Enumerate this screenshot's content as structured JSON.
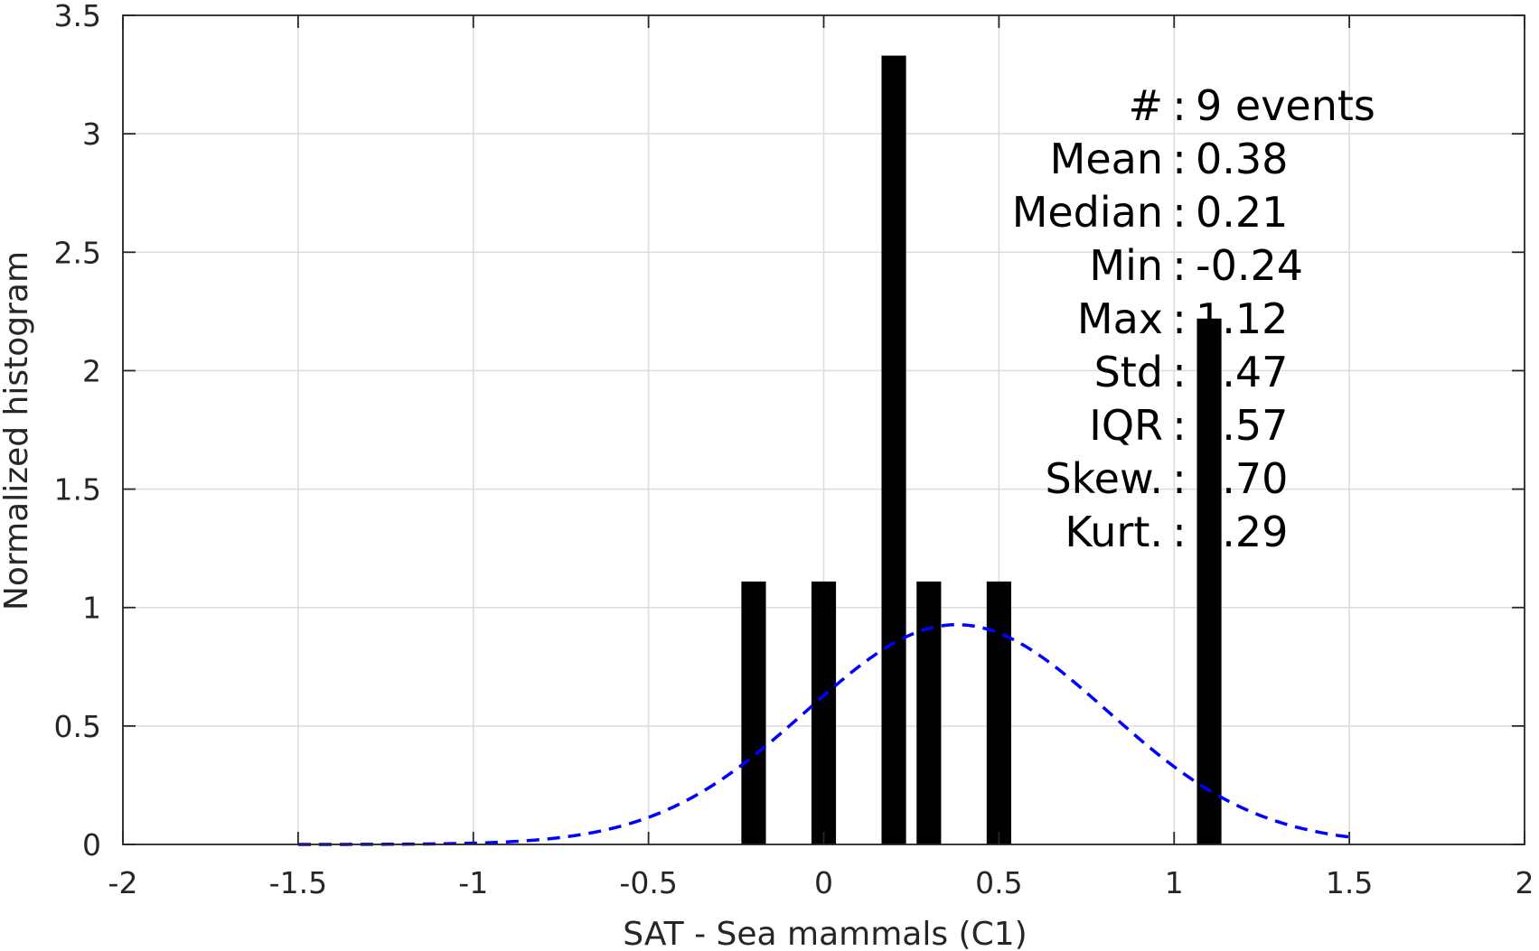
{
  "chart_data": {
    "type": "bar",
    "xlabel": "SAT - Sea mammals (C1)",
    "ylabel": "Normalized histogram",
    "xlim": [
      -2,
      2
    ],
    "ylim": [
      0,
      3.5
    ],
    "xticks": [
      -2,
      -1.5,
      -1,
      -0.5,
      0,
      0.5,
      1,
      1.5,
      2
    ],
    "xtick_labels": [
      "-2",
      "-1.5",
      "-1",
      "-0.5",
      "0",
      "0.5",
      "1",
      "1.5",
      "2"
    ],
    "yticks": [
      0,
      0.5,
      1,
      1.5,
      2,
      2.5,
      3,
      3.5
    ],
    "ytick_labels": [
      "0",
      "0.5",
      "1",
      "1.5",
      "2",
      "2.5",
      "3",
      "3.5"
    ],
    "grid": true,
    "bar_width": 0.07,
    "bars": [
      {
        "x": -0.2,
        "y": 1.11
      },
      {
        "x": 0.0,
        "y": 1.11
      },
      {
        "x": 0.2,
        "y": 3.33
      },
      {
        "x": 0.3,
        "y": 1.11
      },
      {
        "x": 0.5,
        "y": 1.11
      },
      {
        "x": 1.1,
        "y": 2.22
      }
    ],
    "bar_color": "#000000",
    "normal_fit": {
      "mean": 0.38,
      "std": 0.43,
      "x_range": [
        -1.5,
        1.5
      ],
      "color": "#0000ff",
      "style": "dashed"
    },
    "stats": [
      {
        "label": "#",
        "sep": ":",
        "value": "9 events"
      },
      {
        "label": "Mean",
        "sep": ":",
        "value": "0.38"
      },
      {
        "label": "Median",
        "sep": ":",
        "value": "0.21"
      },
      {
        "label": "Min",
        "sep": ":",
        "value": "-0.24"
      },
      {
        "label": "Max",
        "sep": ":",
        "value": "1.12"
      },
      {
        "label": "Std",
        "sep": ":",
        "value": "0.47"
      },
      {
        "label": "IQR",
        "sep": ":",
        "value": "0.57"
      },
      {
        "label": "Skew.",
        "sep": ":",
        "value": "0.70"
      },
      {
        "label": "Kurt.",
        "sep": ":",
        "value": "2.29"
      }
    ]
  }
}
